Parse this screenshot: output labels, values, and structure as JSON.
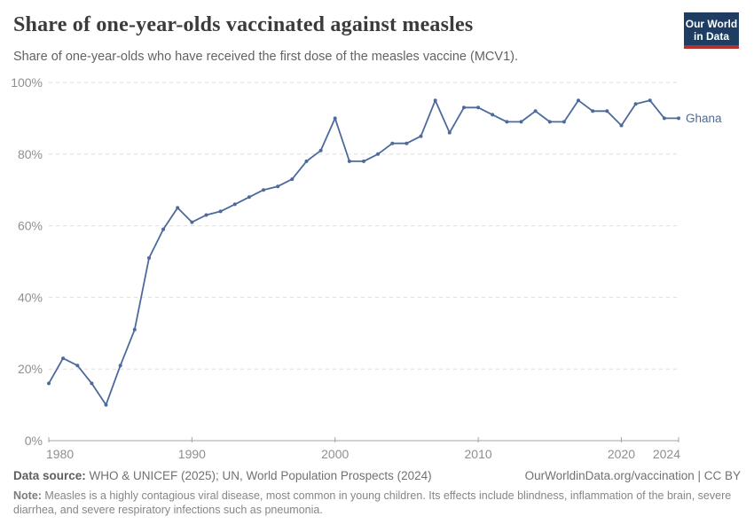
{
  "header": {
    "title": "Share of one-year-olds vaccinated against measles",
    "subtitle": "Share of one-year-olds who have received the first dose of the measles vaccine (MCV1).",
    "logo": {
      "line1": "Our World",
      "line2": "in Data",
      "bg_color": "#1d3d63",
      "accent_color": "#b5322b"
    }
  },
  "chart_data": {
    "type": "line",
    "title": "Share of one-year-olds vaccinated against measles",
    "xlabel": "",
    "ylabel": "",
    "xlim": [
      1980,
      2024
    ],
    "ylim": [
      0,
      100
    ],
    "grid": "horizontal-dashed",
    "legend_position": "end-of-line-label",
    "yticks": [
      {
        "value": 0,
        "label": "0%"
      },
      {
        "value": 20,
        "label": "20%"
      },
      {
        "value": 40,
        "label": "40%"
      },
      {
        "value": 60,
        "label": "60%"
      },
      {
        "value": 80,
        "label": "80%"
      },
      {
        "value": 100,
        "label": "100%"
      }
    ],
    "xticks": [
      {
        "value": 1980,
        "label": "1980"
      },
      {
        "value": 1990,
        "label": "1990"
      },
      {
        "value": 2000,
        "label": "2000"
      },
      {
        "value": 2010,
        "label": "2010"
      },
      {
        "value": 2020,
        "label": "2020"
      },
      {
        "value": 2024,
        "label": "2024"
      }
    ],
    "series": [
      {
        "name": "Ghana",
        "color": "#4C6A9C",
        "x": [
          1980,
          1981,
          1982,
          1983,
          1984,
          1985,
          1986,
          1987,
          1988,
          1989,
          1990,
          1991,
          1992,
          1993,
          1994,
          1995,
          1996,
          1997,
          1998,
          1999,
          2000,
          2001,
          2002,
          2003,
          2004,
          2005,
          2006,
          2007,
          2008,
          2009,
          2010,
          2011,
          2012,
          2013,
          2014,
          2015,
          2016,
          2017,
          2018,
          2019,
          2020,
          2021,
          2022,
          2023,
          2024
        ],
        "values": [
          16,
          23,
          21,
          16,
          10,
          21,
          31,
          51,
          59,
          65,
          61,
          63,
          64,
          66,
          68,
          70,
          71,
          73,
          78,
          81,
          90,
          78,
          78,
          80,
          83,
          83,
          85,
          95,
          86,
          93,
          93,
          91,
          89,
          89,
          92,
          89,
          89,
          95,
          92,
          92,
          88,
          94,
          95,
          90,
          90
        ]
      }
    ]
  },
  "footer": {
    "data_source_label": "Data source:",
    "data_source_text": " WHO & UNICEF (2025); UN, World Population Prospects (2024)",
    "link_text": "OurWorldinData.org/vaccination | CC BY",
    "note_label": "Note:",
    "note_text": " Measles is a highly contagious viral disease, most common in young children. Its effects include blindness, inflammation of the brain, severe diarrhea, and severe respiratory infections such as pneumonia."
  }
}
